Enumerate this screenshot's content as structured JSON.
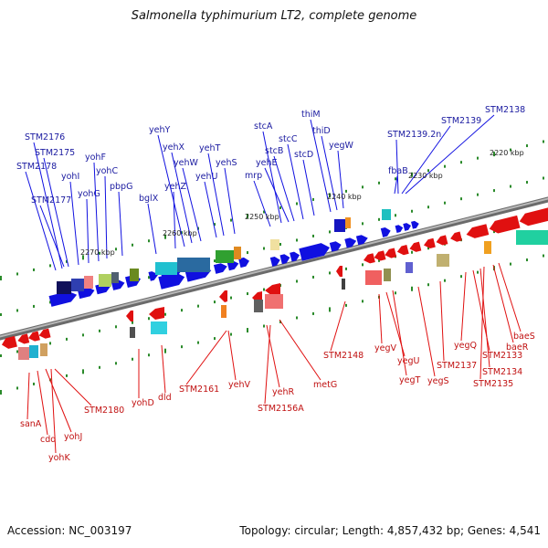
{
  "title": "Salmonella typhimurium LT2, complete genome",
  "footer": {
    "accession": "Accession: NC_003197",
    "topology": "Topology: circular; Length: 4,857,432 bp; Genes: 4,541"
  },
  "colors": {
    "forward_genes": "#1010e0",
    "reverse_genes": "#e01010",
    "forward_label": "#1a1aa0",
    "reverse_label": "#c01010",
    "backbone": "#808080",
    "tick": "#2a8a2a"
  },
  "scale_labels": [
    "2270 kbp",
    "2260 kbp",
    "2250 kbp",
    "2240 kbp",
    "2230 kbp",
    "2220 kbp"
  ],
  "forward_genes": [
    "STM2176",
    "STM2175",
    "STM2178",
    "STM2177",
    "yohI",
    "yohG",
    "yohF",
    "yohC",
    "pbpG",
    "bglX",
    "yehZ",
    "yehY",
    "yehX",
    "yehW",
    "yehU",
    "yehT",
    "yehS",
    "mrp",
    "stcA",
    "yehE",
    "stcB",
    "stcC",
    "stcD",
    "thiM",
    "thiD",
    "yegW",
    "fbaB",
    "STM2139.2n",
    "STM2139",
    "STM2138"
  ],
  "reverse_genes": [
    "sanA",
    "cdd",
    "yohJ",
    "yohK",
    "STM2180",
    "yohD",
    "dld",
    "STM2161",
    "yehV",
    "yehR",
    "STM2156A",
    "metG",
    "STM2148",
    "yegV",
    "yegU",
    "yegT",
    "yegS",
    "STM2137",
    "yegQ",
    "STM2133",
    "STM2134",
    "STM2135",
    "baeR",
    "baeS"
  ]
}
